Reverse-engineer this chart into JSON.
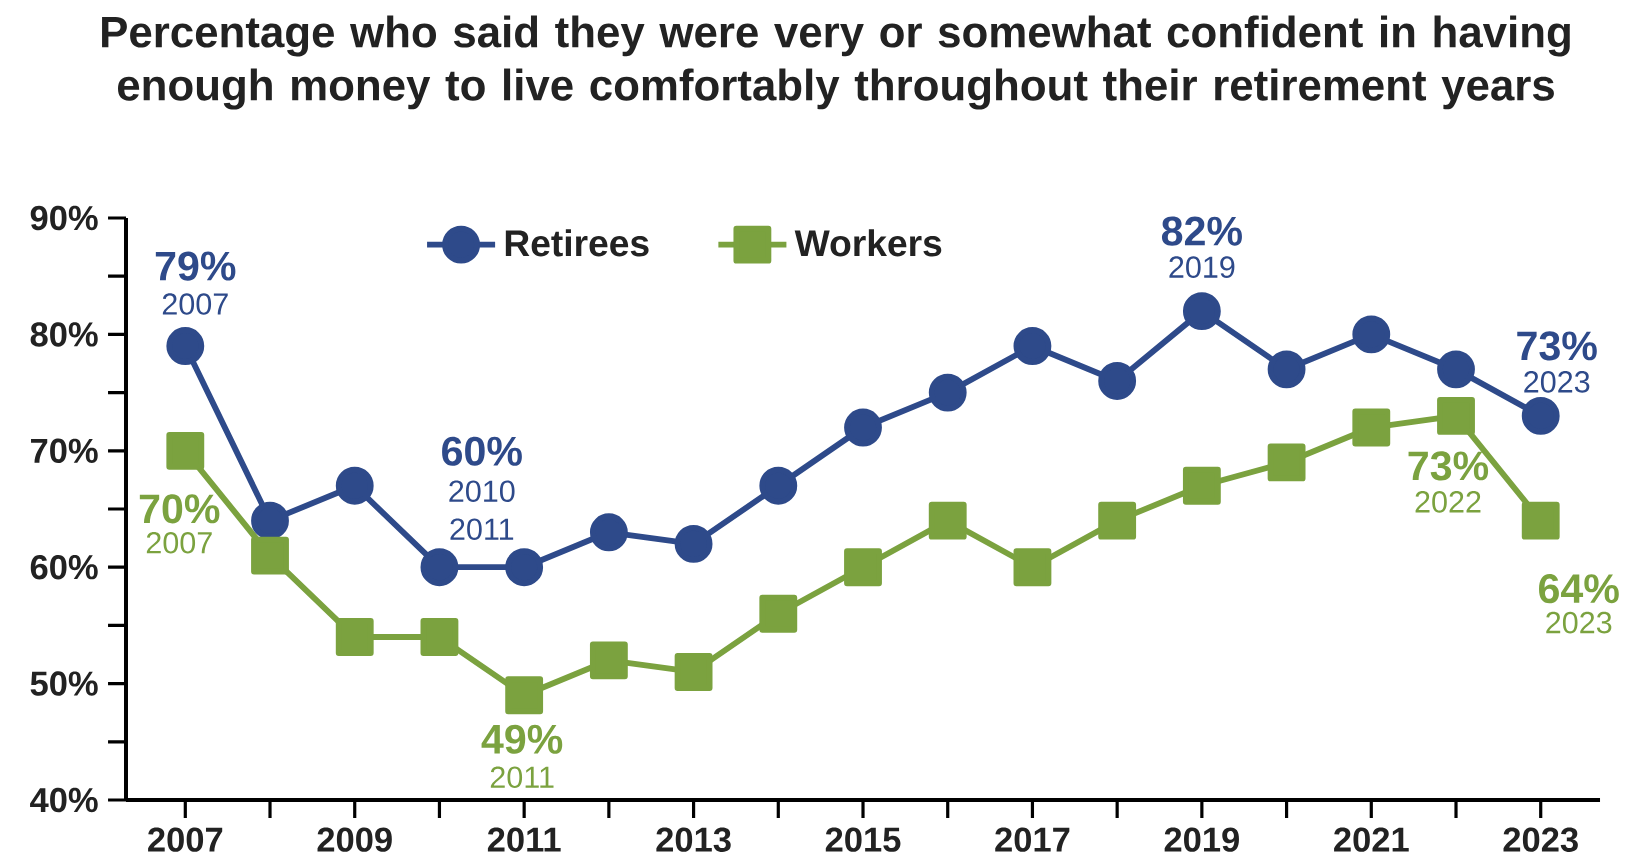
{
  "chart_data": {
    "type": "line",
    "title": "Percentage who said they were very or somewhat confident in having enough money to live comfortably throughout their retirement years",
    "x": [
      2007,
      2008,
      2009,
      2010,
      2011,
      2012,
      2013,
      2014,
      2015,
      2016,
      2017,
      2018,
      2019,
      2020,
      2021,
      2022,
      2023
    ],
    "series": [
      {
        "name": "Retirees",
        "color": "#2e4a8a",
        "marker": "circle",
        "values": [
          79,
          64,
          67,
          60,
          60,
          63,
          62,
          67,
          72,
          75,
          79,
          76,
          82,
          77,
          80,
          77,
          73
        ]
      },
      {
        "name": "Workers",
        "color": "#7ba23f",
        "marker": "square",
        "values": [
          70,
          61,
          54,
          54,
          49,
          52,
          51,
          56,
          60,
          64,
          60,
          64,
          67,
          69,
          72,
          73,
          64
        ]
      }
    ],
    "xlim": [
      2006.3,
      2023.7
    ],
    "xticks": [
      2007,
      {
        "value": 2008,
        "label": null
      },
      2009,
      {
        "value": 2010,
        "label": null
      },
      2011,
      {
        "value": 2012,
        "label": null
      },
      2013,
      {
        "value": 2014,
        "label": null
      },
      2015,
      {
        "value": 2016,
        "label": null
      },
      2017,
      {
        "value": 2018,
        "label": null
      },
      2019,
      {
        "value": 2020,
        "label": null
      },
      2021,
      {
        "value": 2022,
        "label": null
      },
      2023
    ],
    "ylim": [
      40,
      90
    ],
    "yticks": [
      {
        "value": 40,
        "label": "40%"
      },
      {
        "value": 45,
        "label": null
      },
      {
        "value": 50,
        "label": "50%"
      },
      {
        "value": 55,
        "label": null
      },
      {
        "value": 60,
        "label": "60%"
      },
      {
        "value": 65,
        "label": null
      },
      {
        "value": 70,
        "label": "70%"
      },
      {
        "value": 75,
        "label": null
      },
      {
        "value": 80,
        "label": "80%"
      },
      {
        "value": 85,
        "label": null
      },
      {
        "value": 90,
        "label": "90%"
      }
    ],
    "legend": "top",
    "grid": false,
    "line_style": "solid",
    "annotations": [
      {
        "text": "79%",
        "x": 2007,
        "y": 79
      },
      {
        "text": "2007",
        "x": 2007,
        "y": 79
      },
      {
        "text": "70%",
        "x": 2007,
        "y": 70
      },
      {
        "text": "2007",
        "x": 2007,
        "y": 70
      },
      {
        "text": "60%",
        "x": 2010.5,
        "y": 60
      },
      {
        "text": "2010",
        "x": 2010.5,
        "y": 60
      },
      {
        "text": "2011",
        "x": 2010.5,
        "y": 60
      },
      {
        "text": "49%",
        "x": 2011,
        "y": 49
      },
      {
        "text": "2011",
        "x": 2011,
        "y": 49
      },
      {
        "text": "82%",
        "x": 2019,
        "y": 82
      },
      {
        "text": "2019",
        "x": 2019,
        "y": 82
      },
      {
        "text": "73%",
        "x": 2023,
        "y": 73
      },
      {
        "text": "2023",
        "x": 2023,
        "y": 73
      },
      {
        "text": "73%",
        "x": 2022,
        "y": 73
      },
      {
        "text": "2022",
        "x": 2022,
        "y": 73
      },
      {
        "text": "64%",
        "x": 2023,
        "y": 64
      },
      {
        "text": "2023",
        "x": 2023,
        "y": 64
      }
    ]
  }
}
